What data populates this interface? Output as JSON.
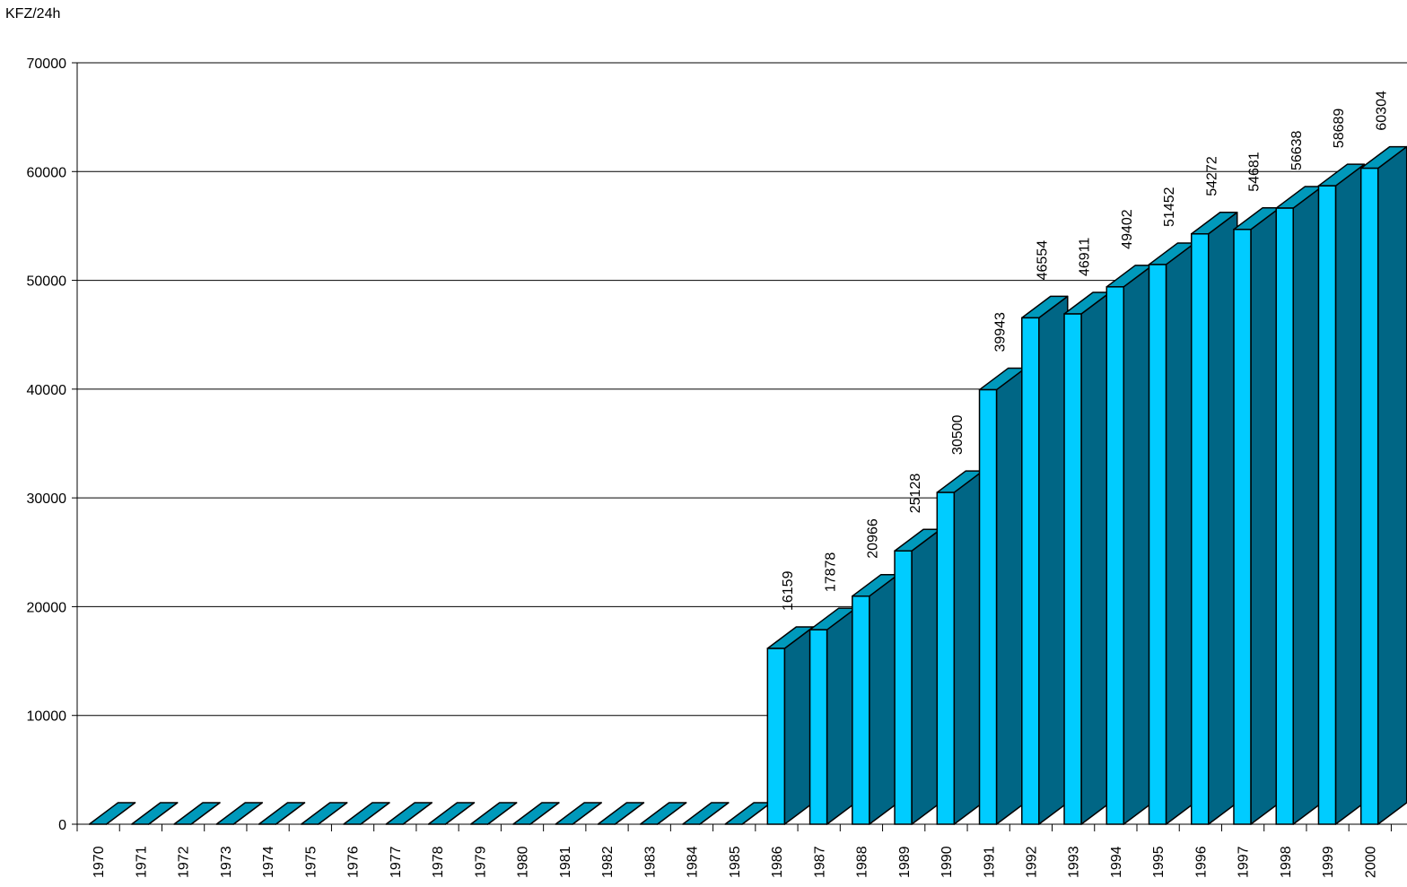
{
  "chart_data": {
    "type": "bar",
    "ylabel": "KFZ/24h",
    "ylim": [
      0,
      70000
    ],
    "yticks": [
      0,
      10000,
      20000,
      30000,
      40000,
      50000,
      60000,
      70000
    ],
    "grid": true,
    "style": "3d",
    "colors": {
      "front": "#00CCFF",
      "side": "#006685",
      "top": "#0099BB",
      "stroke": "#000000"
    },
    "categories": [
      "1970",
      "1971",
      "1972",
      "1973",
      "1974",
      "1975",
      "1976",
      "1977",
      "1978",
      "1979",
      "1980",
      "1981",
      "1982",
      "1983",
      "1984",
      "1985",
      "1986",
      "1987",
      "1988",
      "1989",
      "1990",
      "1991",
      "1992",
      "1993",
      "1994",
      "1995",
      "1996",
      "1997",
      "1998",
      "1999",
      "2000"
    ],
    "values": [
      0,
      0,
      0,
      0,
      0,
      0,
      0,
      0,
      0,
      0,
      0,
      0,
      0,
      0,
      0,
      0,
      16159,
      17878,
      20966,
      25128,
      30500,
      39943,
      46554,
      46911,
      49402,
      51452,
      54272,
      54681,
      56638,
      58689,
      60304
    ],
    "data_labels": [
      "",
      "",
      "",
      "",
      "",
      "",
      "",
      "",
      "",
      "",
      "",
      "",
      "",
      "",
      "",
      "",
      "16159",
      "17878",
      "20966",
      "25128",
      "30500",
      "39943",
      "46554",
      "46911",
      "49402",
      "51452",
      "54272",
      "54681",
      "56638",
      "58689",
      "60304"
    ]
  }
}
